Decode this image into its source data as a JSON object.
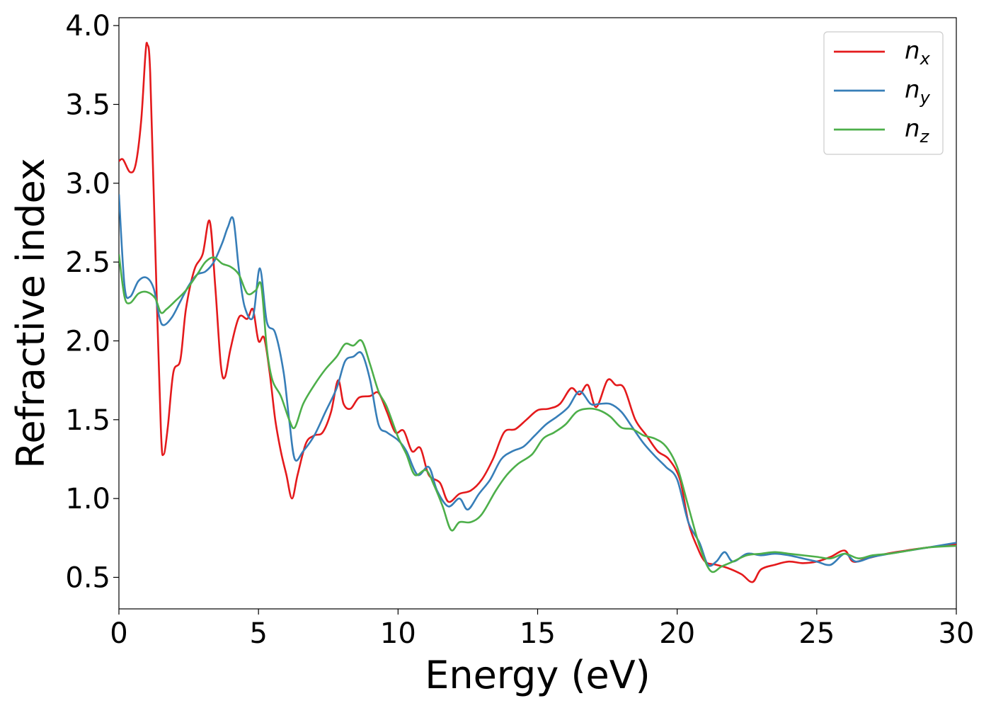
{
  "chart_data": {
    "type": "line",
    "xlabel": "Energy (eV)",
    "ylabel": "Refractive index",
    "xlim": [
      0,
      30
    ],
    "ylim": [
      0.3,
      4.05
    ],
    "x_ticks": [
      0,
      5,
      10,
      15,
      20,
      25,
      30
    ],
    "x_tick_labels": [
      "0",
      "5",
      "10",
      "15",
      "20",
      "25",
      "30"
    ],
    "y_ticks": [
      0.5,
      1.0,
      1.5,
      2.0,
      2.5,
      3.0,
      3.5,
      4.0
    ],
    "y_tick_labels": [
      "0.5",
      "1.0",
      "1.5",
      "2.0",
      "2.5",
      "3.0",
      "3.5",
      "4.0"
    ],
    "grid": false,
    "legend_position": "top-right",
    "series": [
      {
        "name": "n",
        "subscript": "x",
        "color": "#e41a1c",
        "points": [
          [
            0,
            3.14
          ],
          [
            0.15,
            3.15
          ],
          [
            0.4,
            3.07
          ],
          [
            0.6,
            3.12
          ],
          [
            0.8,
            3.4
          ],
          [
            0.95,
            3.82
          ],
          [
            1.02,
            3.88
          ],
          [
            1.12,
            3.7
          ],
          [
            1.3,
            2.6
          ],
          [
            1.5,
            1.45
          ],
          [
            1.6,
            1.28
          ],
          [
            1.75,
            1.45
          ],
          [
            1.95,
            1.8
          ],
          [
            2.2,
            1.88
          ],
          [
            2.4,
            2.2
          ],
          [
            2.7,
            2.45
          ],
          [
            3.0,
            2.55
          ],
          [
            3.25,
            2.76
          ],
          [
            3.45,
            2.35
          ],
          [
            3.65,
            1.85
          ],
          [
            3.8,
            1.77
          ],
          [
            4.0,
            1.95
          ],
          [
            4.3,
            2.15
          ],
          [
            4.6,
            2.14
          ],
          [
            4.8,
            2.2
          ],
          [
            5.0,
            2.0
          ],
          [
            5.2,
            2.02
          ],
          [
            5.4,
            1.8
          ],
          [
            5.6,
            1.5
          ],
          [
            5.8,
            1.3
          ],
          [
            6.0,
            1.15
          ],
          [
            6.2,
            1.0
          ],
          [
            6.4,
            1.15
          ],
          [
            6.7,
            1.35
          ],
          [
            7.0,
            1.4
          ],
          [
            7.3,
            1.42
          ],
          [
            7.6,
            1.55
          ],
          [
            7.85,
            1.75
          ],
          [
            8.05,
            1.6
          ],
          [
            8.3,
            1.57
          ],
          [
            8.6,
            1.64
          ],
          [
            9.0,
            1.65
          ],
          [
            9.3,
            1.67
          ],
          [
            9.6,
            1.55
          ],
          [
            9.9,
            1.42
          ],
          [
            10.2,
            1.43
          ],
          [
            10.5,
            1.3
          ],
          [
            10.8,
            1.32
          ],
          [
            11.1,
            1.15
          ],
          [
            11.5,
            1.1
          ],
          [
            11.8,
            0.98
          ],
          [
            12.2,
            1.03
          ],
          [
            12.6,
            1.05
          ],
          [
            13.0,
            1.12
          ],
          [
            13.4,
            1.25
          ],
          [
            13.8,
            1.42
          ],
          [
            14.2,
            1.44
          ],
          [
            14.6,
            1.5
          ],
          [
            15.0,
            1.56
          ],
          [
            15.4,
            1.57
          ],
          [
            15.8,
            1.6
          ],
          [
            16.2,
            1.7
          ],
          [
            16.5,
            1.66
          ],
          [
            16.8,
            1.72
          ],
          [
            17.1,
            1.58
          ],
          [
            17.5,
            1.75
          ],
          [
            17.8,
            1.72
          ],
          [
            18.1,
            1.7
          ],
          [
            18.5,
            1.5
          ],
          [
            18.9,
            1.4
          ],
          [
            19.3,
            1.3
          ],
          [
            19.7,
            1.25
          ],
          [
            20.1,
            1.12
          ],
          [
            20.4,
            0.85
          ],
          [
            20.7,
            0.7
          ],
          [
            21.0,
            0.6
          ],
          [
            21.4,
            0.58
          ],
          [
            21.8,
            0.56
          ],
          [
            22.3,
            0.52
          ],
          [
            22.7,
            0.47
          ],
          [
            23.0,
            0.55
          ],
          [
            23.5,
            0.58
          ],
          [
            24.0,
            0.6
          ],
          [
            24.5,
            0.59
          ],
          [
            25.0,
            0.6
          ],
          [
            25.5,
            0.63
          ],
          [
            26.0,
            0.67
          ],
          [
            26.3,
            0.6
          ],
          [
            26.8,
            0.62
          ],
          [
            27.5,
            0.65
          ],
          [
            28.2,
            0.67
          ],
          [
            29.0,
            0.69
          ],
          [
            30.0,
            0.71
          ]
        ]
      },
      {
        "name": "n",
        "subscript": "y",
        "color": "#377eb8",
        "points": [
          [
            0,
            2.93
          ],
          [
            0.2,
            2.35
          ],
          [
            0.4,
            2.28
          ],
          [
            0.7,
            2.38
          ],
          [
            1.0,
            2.4
          ],
          [
            1.25,
            2.33
          ],
          [
            1.45,
            2.15
          ],
          [
            1.6,
            2.1
          ],
          [
            1.9,
            2.15
          ],
          [
            2.2,
            2.25
          ],
          [
            2.5,
            2.35
          ],
          [
            2.8,
            2.42
          ],
          [
            3.1,
            2.44
          ],
          [
            3.4,
            2.5
          ],
          [
            3.7,
            2.62
          ],
          [
            3.9,
            2.72
          ],
          [
            4.1,
            2.77
          ],
          [
            4.3,
            2.45
          ],
          [
            4.5,
            2.22
          ],
          [
            4.8,
            2.15
          ],
          [
            5.05,
            2.46
          ],
          [
            5.3,
            2.12
          ],
          [
            5.6,
            2.05
          ],
          [
            5.9,
            1.8
          ],
          [
            6.1,
            1.5
          ],
          [
            6.3,
            1.25
          ],
          [
            6.6,
            1.3
          ],
          [
            7.0,
            1.4
          ],
          [
            7.4,
            1.55
          ],
          [
            7.8,
            1.7
          ],
          [
            8.1,
            1.87
          ],
          [
            8.4,
            1.9
          ],
          [
            8.7,
            1.92
          ],
          [
            9.0,
            1.75
          ],
          [
            9.3,
            1.47
          ],
          [
            9.6,
            1.42
          ],
          [
            10.0,
            1.37
          ],
          [
            10.3,
            1.3
          ],
          [
            10.7,
            1.15
          ],
          [
            11.1,
            1.2
          ],
          [
            11.4,
            1.05
          ],
          [
            11.8,
            0.95
          ],
          [
            12.2,
            1.0
          ],
          [
            12.5,
            0.93
          ],
          [
            12.9,
            1.03
          ],
          [
            13.3,
            1.12
          ],
          [
            13.7,
            1.25
          ],
          [
            14.1,
            1.3
          ],
          [
            14.5,
            1.33
          ],
          [
            14.9,
            1.4
          ],
          [
            15.3,
            1.47
          ],
          [
            15.7,
            1.52
          ],
          [
            16.1,
            1.58
          ],
          [
            16.5,
            1.68
          ],
          [
            16.9,
            1.6
          ],
          [
            17.2,
            1.6
          ],
          [
            17.6,
            1.6
          ],
          [
            18.0,
            1.55
          ],
          [
            18.4,
            1.45
          ],
          [
            18.8,
            1.35
          ],
          [
            19.2,
            1.27
          ],
          [
            19.6,
            1.2
          ],
          [
            20.0,
            1.12
          ],
          [
            20.4,
            0.85
          ],
          [
            20.8,
            0.72
          ],
          [
            21.1,
            0.58
          ],
          [
            21.4,
            0.6
          ],
          [
            21.7,
            0.66
          ],
          [
            22.0,
            0.6
          ],
          [
            22.5,
            0.65
          ],
          [
            23.0,
            0.64
          ],
          [
            23.5,
            0.65
          ],
          [
            24.0,
            0.64
          ],
          [
            24.5,
            0.62
          ],
          [
            25.0,
            0.6
          ],
          [
            25.5,
            0.58
          ],
          [
            26.0,
            0.65
          ],
          [
            26.4,
            0.6
          ],
          [
            27.0,
            0.63
          ],
          [
            27.6,
            0.65
          ],
          [
            28.3,
            0.67
          ],
          [
            29.0,
            0.69
          ],
          [
            30.0,
            0.72
          ]
        ]
      },
      {
        "name": "n",
        "subscript": "z",
        "color": "#4daf4a",
        "points": [
          [
            0,
            2.55
          ],
          [
            0.2,
            2.28
          ],
          [
            0.4,
            2.24
          ],
          [
            0.7,
            2.3
          ],
          [
            1.0,
            2.31
          ],
          [
            1.3,
            2.27
          ],
          [
            1.5,
            2.18
          ],
          [
            1.7,
            2.2
          ],
          [
            2.0,
            2.25
          ],
          [
            2.4,
            2.32
          ],
          [
            2.8,
            2.42
          ],
          [
            3.1,
            2.5
          ],
          [
            3.4,
            2.53
          ],
          [
            3.7,
            2.49
          ],
          [
            4.0,
            2.47
          ],
          [
            4.3,
            2.42
          ],
          [
            4.6,
            2.3
          ],
          [
            4.9,
            2.32
          ],
          [
            5.1,
            2.35
          ],
          [
            5.3,
            1.95
          ],
          [
            5.5,
            1.75
          ],
          [
            5.8,
            1.65
          ],
          [
            6.1,
            1.5
          ],
          [
            6.3,
            1.45
          ],
          [
            6.6,
            1.6
          ],
          [
            7.0,
            1.72
          ],
          [
            7.4,
            1.82
          ],
          [
            7.8,
            1.9
          ],
          [
            8.1,
            1.98
          ],
          [
            8.4,
            1.97
          ],
          [
            8.7,
            2.0
          ],
          [
            9.0,
            1.85
          ],
          [
            9.3,
            1.68
          ],
          [
            9.6,
            1.58
          ],
          [
            10.0,
            1.39
          ],
          [
            10.3,
            1.28
          ],
          [
            10.6,
            1.15
          ],
          [
            11.0,
            1.18
          ],
          [
            11.3,
            1.08
          ],
          [
            11.6,
            0.95
          ],
          [
            11.9,
            0.8
          ],
          [
            12.2,
            0.85
          ],
          [
            12.6,
            0.85
          ],
          [
            13.0,
            0.9
          ],
          [
            13.5,
            1.05
          ],
          [
            13.9,
            1.15
          ],
          [
            14.3,
            1.22
          ],
          [
            14.8,
            1.28
          ],
          [
            15.2,
            1.38
          ],
          [
            15.6,
            1.42
          ],
          [
            16.0,
            1.47
          ],
          [
            16.4,
            1.55
          ],
          [
            16.8,
            1.57
          ],
          [
            17.2,
            1.56
          ],
          [
            17.6,
            1.52
          ],
          [
            18.0,
            1.45
          ],
          [
            18.4,
            1.44
          ],
          [
            18.8,
            1.4
          ],
          [
            19.2,
            1.38
          ],
          [
            19.6,
            1.33
          ],
          [
            20.0,
            1.2
          ],
          [
            20.4,
            0.95
          ],
          [
            20.8,
            0.7
          ],
          [
            21.2,
            0.54
          ],
          [
            21.6,
            0.57
          ],
          [
            22.0,
            0.6
          ],
          [
            22.5,
            0.64
          ],
          [
            23.0,
            0.65
          ],
          [
            23.5,
            0.66
          ],
          [
            24.0,
            0.65
          ],
          [
            24.5,
            0.64
          ],
          [
            25.0,
            0.63
          ],
          [
            25.5,
            0.62
          ],
          [
            26.0,
            0.65
          ],
          [
            26.5,
            0.62
          ],
          [
            27.0,
            0.64
          ],
          [
            27.6,
            0.65
          ],
          [
            28.3,
            0.67
          ],
          [
            29.0,
            0.69
          ],
          [
            30.0,
            0.7
          ]
        ]
      }
    ]
  }
}
